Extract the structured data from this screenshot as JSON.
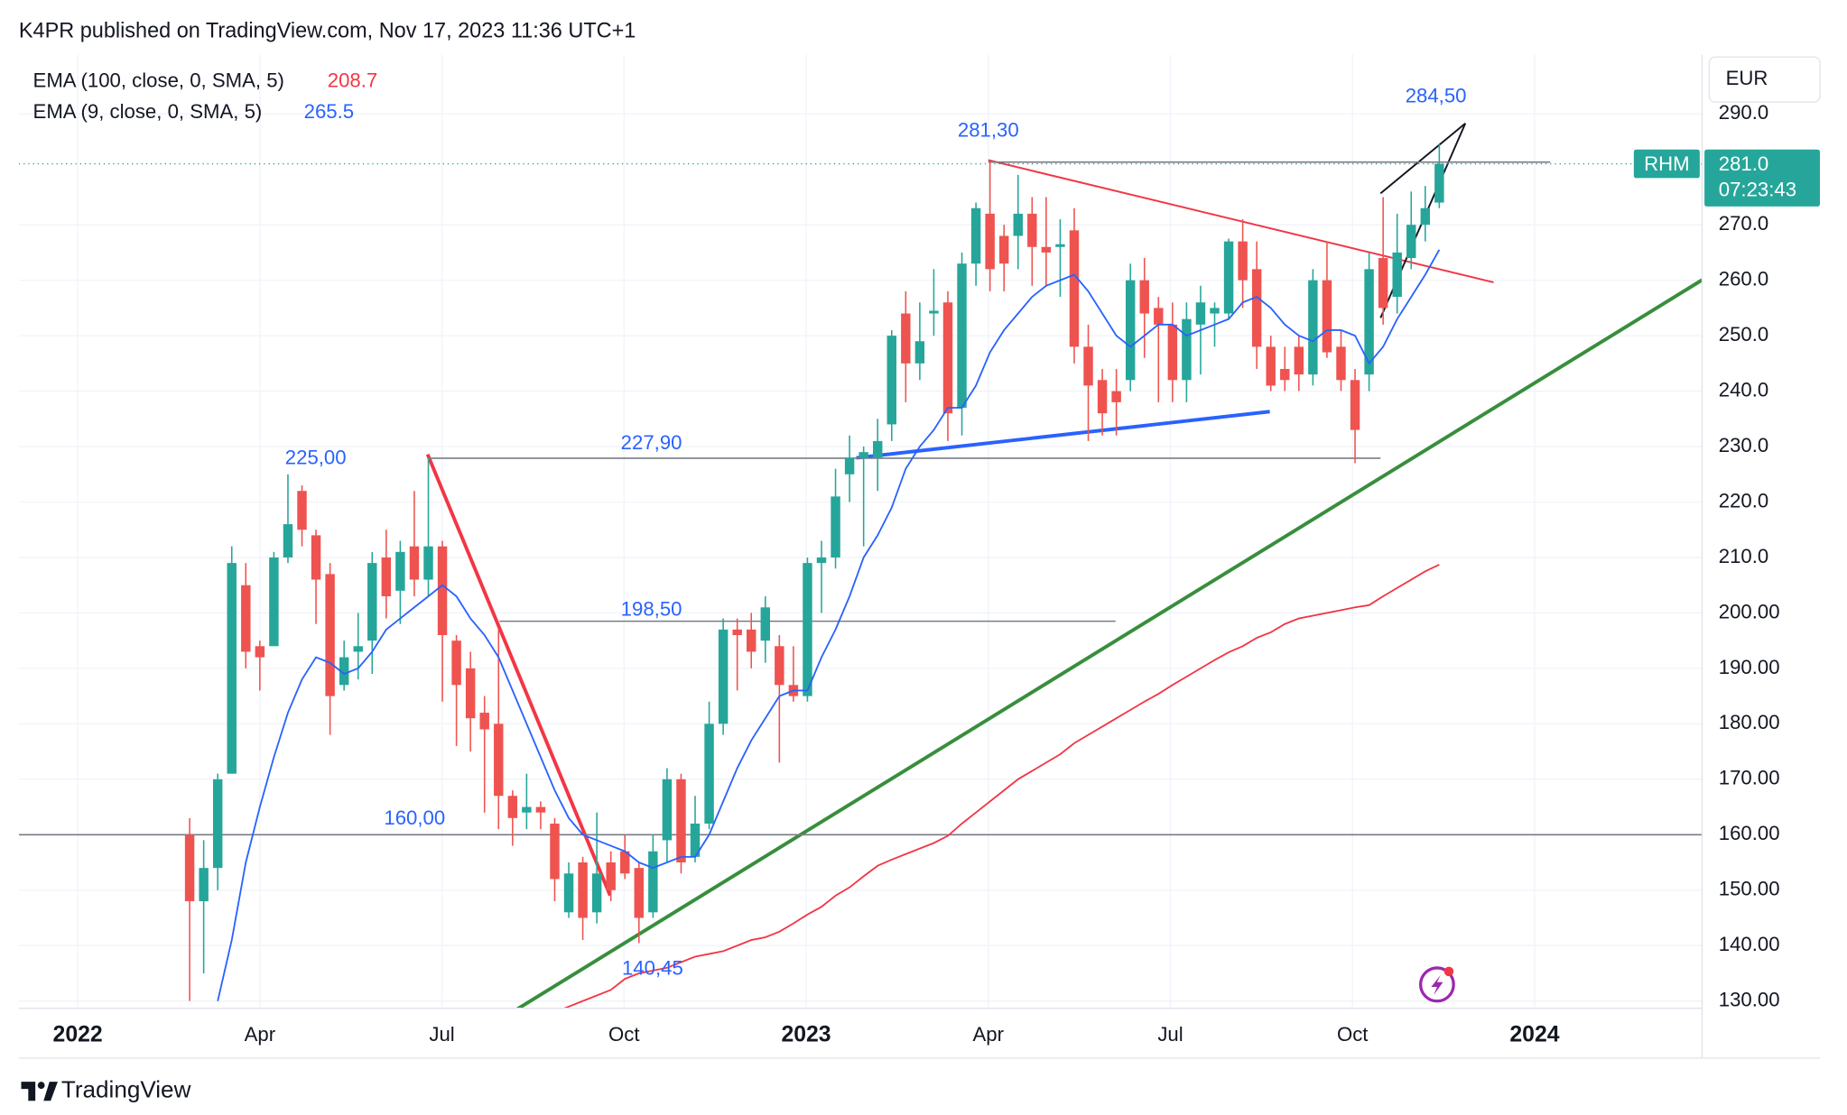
{
  "header": "K4PR published on TradingView.com, Nov 17, 2023 11:36 UTC+1",
  "footer": "TradingView",
  "chart_data": {
    "type": "candlestick",
    "symbol": "RHM",
    "currency": "EUR",
    "close_label": "281.0",
    "countdown": "07:23:43",
    "colors": {
      "up": "#26a69a",
      "down": "#ef5350"
    },
    "grid": true,
    "ylim": [
      128.7,
      300.7
    ],
    "yticks": [
      {
        "value": 130,
        "label": "130.00"
      },
      {
        "value": 140,
        "label": "140.00"
      },
      {
        "value": 150,
        "label": "150.00"
      },
      {
        "value": 160,
        "label": "160.00"
      },
      {
        "value": 170,
        "label": "170.00"
      },
      {
        "value": 180,
        "label": "180.00"
      },
      {
        "value": 190,
        "label": "190.00"
      },
      {
        "value": 200,
        "label": "200.00"
      },
      {
        "value": 210,
        "label": "210.0"
      },
      {
        "value": 220,
        "label": "220.0"
      },
      {
        "value": 230,
        "label": "230.0"
      },
      {
        "value": 240,
        "label": "240.0"
      },
      {
        "value": 250,
        "label": "250.0"
      },
      {
        "value": 260,
        "label": "260.0"
      },
      {
        "value": 270,
        "label": "270.0"
      },
      {
        "value": 290,
        "label": "290.0"
      }
    ],
    "xticks": [
      "2022",
      "Apr",
      "Jul",
      "Oct",
      "2023",
      "Apr",
      "Jul",
      "Oct",
      "2024"
    ],
    "open": [
      160,
      148,
      154,
      171,
      205,
      194,
      194,
      210,
      222,
      214,
      207,
      187,
      193,
      195,
      210,
      204,
      212,
      206,
      212,
      195,
      190,
      182,
      180,
      167,
      164,
      165,
      162,
      146,
      155,
      146,
      155,
      157,
      154,
      146,
      159,
      170,
      156,
      162,
      180,
      197,
      197,
      195,
      194,
      187,
      185,
      209,
      210,
      225,
      228,
      228,
      234,
      254,
      245,
      254,
      256,
      237,
      263,
      272,
      268,
      268,
      272,
      266,
      266,
      269,
      248,
      242,
      240,
      242,
      260,
      255,
      252,
      242,
      252,
      254,
      254,
      267,
      262,
      248,
      244,
      248,
      243,
      260,
      248,
      242,
      243,
      264,
      257,
      264,
      270,
      274
    ],
    "high": [
      163,
      159,
      171,
      212,
      209,
      195,
      211,
      225,
      223,
      215,
      209,
      195,
      200,
      211,
      215,
      213,
      222,
      227.9,
      213,
      196,
      193,
      185,
      197,
      168,
      171,
      166,
      163,
      155,
      156,
      164,
      157,
      160,
      155,
      160,
      172,
      171,
      167,
      184,
      199,
      199,
      200,
      203,
      196,
      194,
      210,
      213,
      226,
      232,
      230,
      235,
      251,
      258,
      256,
      262,
      258,
      265,
      274,
      281.3,
      270,
      279,
      275,
      275,
      271,
      273,
      252,
      244,
      244,
      263,
      264,
      257,
      256,
      256,
      259,
      256,
      267.5,
      271,
      267,
      250,
      248,
      250,
      262,
      267,
      251,
      244,
      265,
      275,
      272,
      276,
      277,
      284.5
    ],
    "low": [
      130,
      135,
      150,
      171,
      190,
      186,
      195,
      209,
      212,
      198,
      178,
      186,
      188,
      189,
      199,
      198,
      203,
      203,
      184,
      176,
      175,
      164,
      161,
      158,
      161,
      161,
      148,
      145,
      141,
      144,
      148,
      152,
      140.45,
      145,
      155,
      153,
      155,
      161,
      178,
      186,
      190,
      191,
      173,
      184,
      184,
      200,
      208,
      220,
      212,
      222,
      231,
      238,
      242,
      250,
      231,
      232,
      259,
      258,
      258,
      262,
      259,
      259,
      257,
      245,
      231,
      232,
      232,
      240,
      246,
      238,
      238,
      238,
      243,
      248,
      253,
      255,
      244,
      240,
      240,
      240,
      241,
      246,
      240,
      227,
      240,
      252,
      254,
      262,
      267,
      273
    ],
    "close": [
      148,
      154,
      170,
      209,
      193,
      192,
      210,
      216,
      215,
      206,
      185,
      192,
      194,
      209,
      203,
      211,
      206,
      212,
      196,
      187,
      181,
      179,
      167,
      163,
      165,
      164,
      152,
      153,
      145,
      153,
      150,
      153,
      145,
      157,
      170,
      155,
      162,
      180,
      197,
      196,
      193,
      201,
      187,
      185,
      209,
      210,
      221,
      228,
      229,
      231,
      250,
      245,
      249,
      254.5,
      236,
      263,
      273,
      262,
      263,
      272,
      266,
      265,
      266.5,
      248,
      241,
      236,
      238,
      260,
      254,
      252,
      242,
      253,
      256,
      255,
      267,
      260,
      248,
      241,
      242,
      243,
      260,
      247,
      242,
      233,
      262,
      255,
      265,
      270,
      273,
      281
    ],
    "series": [
      {
        "name": "EMA (100, close, 0, SMA, 5)",
        "color": "#f23645",
        "values": [
          null,
          null,
          null,
          null,
          null,
          null,
          null,
          null,
          null,
          null,
          null,
          null,
          null,
          null,
          null,
          null,
          null,
          null,
          null,
          null,
          null,
          null,
          null,
          null,
          null,
          null,
          128,
          129,
          130,
          131,
          132,
          134,
          135,
          135.5,
          136,
          137,
          138,
          138.5,
          139,
          140,
          141,
          141.5,
          142.5,
          144,
          145.6,
          147,
          149,
          150.5,
          152.5,
          154.4,
          155.5,
          156.5,
          157.5,
          158.5,
          159.8,
          162,
          164,
          166,
          168,
          170,
          171.5,
          173,
          174.5,
          176.5,
          178,
          179.5,
          181,
          182.5,
          184,
          185.4,
          187,
          188.5,
          190,
          191.5,
          192.9,
          194,
          195.5,
          196.5,
          198,
          199,
          199.5,
          200,
          200.5,
          201,
          201.4,
          203,
          204.5,
          206,
          207.5,
          208.7
        ]
      },
      {
        "name": "EMA (9, close, 0, SMA, 5)",
        "color": "#2962ff",
        "values": [
          null,
          null,
          130,
          141,
          155,
          165,
          174,
          182,
          188,
          192,
          191,
          189,
          190,
          193,
          197,
          199,
          201,
          203,
          205,
          203,
          199,
          196,
          192,
          186,
          180,
          174,
          168,
          163,
          160,
          159,
          158,
          157,
          155,
          154,
          155,
          156,
          156,
          160,
          166,
          172,
          177,
          181,
          185,
          186,
          186,
          192,
          197,
          203,
          210,
          214,
          219,
          226,
          230,
          233,
          237,
          237,
          241,
          247,
          251,
          254,
          257,
          259,
          260,
          261,
          258,
          254,
          250,
          248,
          250,
          252,
          252,
          250,
          251,
          252,
          253,
          256,
          257,
          255,
          252,
          250,
          249,
          251,
          251,
          250,
          245,
          248,
          253,
          257,
          261,
          265.5
        ]
      }
    ],
    "levels": [
      {
        "value": 225,
        "label": "225,00"
      },
      {
        "value": 227.9,
        "label": "227,90"
      },
      {
        "value": 198.5,
        "label": "198,50"
      },
      {
        "value": 160,
        "label": "160,00"
      },
      {
        "value": 140.45,
        "label": "140,45"
      },
      {
        "value": 281.3,
        "label": "281,30"
      },
      {
        "value": 284.5,
        "label": "284,50"
      }
    ]
  }
}
